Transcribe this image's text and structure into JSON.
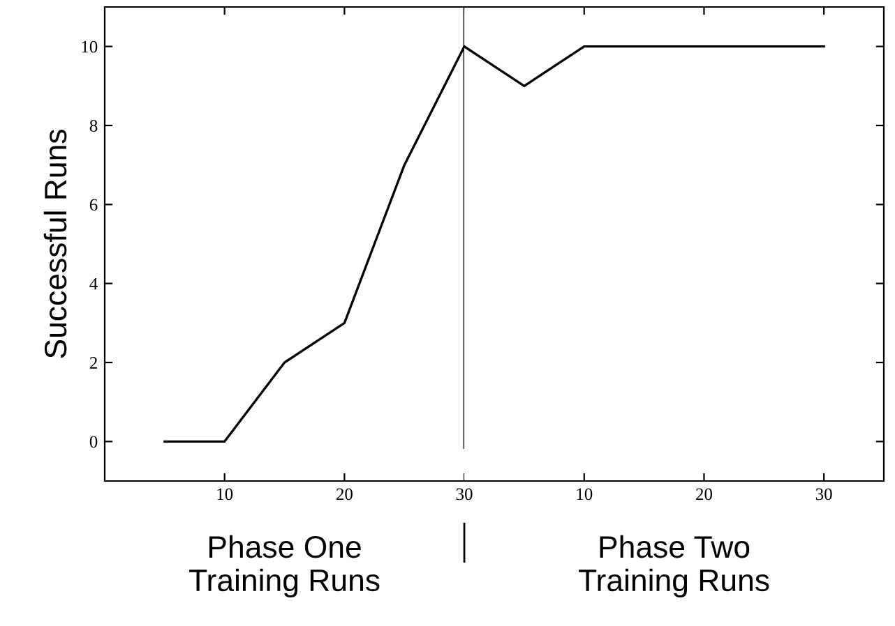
{
  "chart_data": [
    {
      "type": "line",
      "ylabel": "Successful Runs",
      "x": [
        5,
        10,
        15,
        20,
        25,
        30
      ],
      "values": [
        0,
        0,
        2,
        3,
        7,
        10
      ],
      "color": "#000000",
      "xlim": [
        0,
        30
      ],
      "ylim": [
        -1,
        11
      ],
      "xticks": [
        10,
        20,
        30
      ],
      "yticks": [
        0,
        2,
        4,
        6,
        8,
        10
      ],
      "ref_lines": [
        {
          "axis": "x",
          "value": 30,
          "color": "#000000"
        }
      ],
      "annotations": [
        "Phase One\nTraining Runs"
      ],
      "grid": false,
      "legend": false,
      "marker": "none",
      "line_style": "solid"
    },
    {
      "type": "line",
      "x": [
        0,
        5,
        10,
        15,
        20,
        25,
        30
      ],
      "values": [
        10,
        9,
        10,
        10,
        10,
        10,
        10
      ],
      "color": "#000000",
      "xlim": [
        0,
        35
      ],
      "ylim": [
        -1,
        11
      ],
      "xticks": [
        10,
        20,
        30
      ],
      "yticks": [
        0,
        2,
        4,
        6,
        8,
        10
      ],
      "tick_labels": "x",
      "annotations": [
        "Phase Two\nTraining Runs"
      ],
      "grid": false,
      "legend": false,
      "marker": "none",
      "line_style": "solid"
    }
  ]
}
